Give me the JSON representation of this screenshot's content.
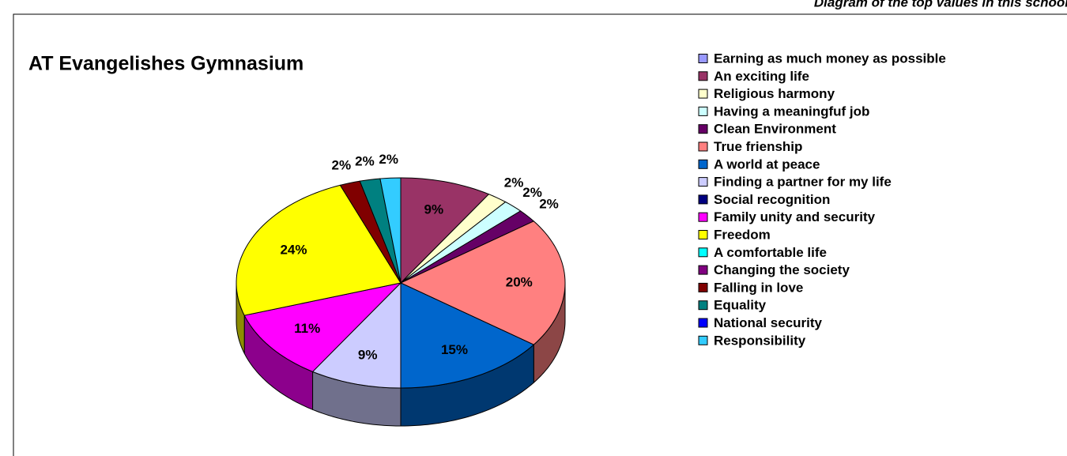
{
  "chart_data": {
    "type": "pie",
    "title": "AT Evangelishes Gymnasium",
    "subtitle": "Diagram of the top values in this school",
    "categories": [
      "Earning as much money as possible",
      "An exciting life",
      "Religious harmony",
      "Having a meaningfuf job",
      "Clean Environment",
      "True frienship",
      "A world at peace",
      "Finding a partner for my life",
      "Social recognition",
      "Family unity and security",
      "Freedom",
      "A comfortable life",
      "Changing the society",
      "Falling in love",
      "Equality",
      "National security",
      "Responsibility"
    ],
    "values": [
      0,
      9,
      2,
      2,
      2,
      20,
      15,
      9,
      0,
      11,
      24,
      0,
      0,
      2,
      2,
      0,
      2
    ],
    "value_labels": [
      null,
      "9%",
      "2%",
      "2%",
      "2%",
      "20%",
      "15%",
      "9%",
      null,
      "11%",
      "24%",
      null,
      null,
      "2%",
      "2%",
      null,
      "2%"
    ],
    "colors": [
      "#9999FF",
      "#993366",
      "#FFFFCC",
      "#CCFFFF",
      "#660066",
      "#FF8080",
      "#0066CC",
      "#CCCCFF",
      "#000080",
      "#FF00FF",
      "#FFFF00",
      "#00FFFF",
      "#800080",
      "#800000",
      "#008080",
      "#0000FF",
      "#33CCFF"
    ],
    "legend": "right"
  }
}
